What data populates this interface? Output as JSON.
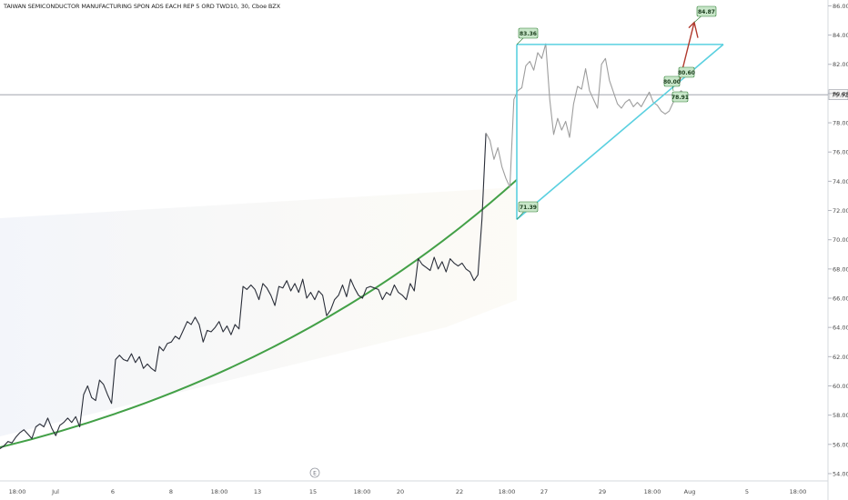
{
  "chart_data": {
    "type": "line",
    "title": "TAIWAN SEMICONDUCTOR MANUFACTURING SPON ADS EACH REP 5 ORD TWD10, 30, Cboe BZX",
    "ylim": [
      53.5,
      86.4
    ],
    "y_ticks": [
      "86.00",
      "84.00",
      "82.00",
      "80.00",
      "78.00",
      "76.00",
      "74.00",
      "72.00",
      "70.00",
      "68.00",
      "66.00",
      "64.00",
      "62.00",
      "60.00",
      "58.00",
      "56.00",
      "54.00"
    ],
    "x_ticks": [
      "18:00",
      "Jul",
      "6",
      "8",
      "18:00",
      "13",
      "15",
      "18:00",
      "20",
      "22",
      "18:00",
      "27",
      "29",
      "18:00",
      "Aug",
      "5",
      "18:00"
    ],
    "last_price": "79.92",
    "earnings_marker": "E",
    "series": [
      {
        "values": [
          55.7,
          55.9,
          56.2,
          56.1,
          56.5,
          56.8,
          57.0,
          56.7,
          56.4,
          57.2,
          57.4,
          57.2,
          57.8,
          57.1,
          56.6,
          57.3,
          57.5,
          57.8,
          57.5,
          57.9,
          57.2,
          59.4,
          60.0,
          59.2,
          59.0,
          60.4,
          60.1,
          59.4,
          58.8,
          61.8,
          62.1,
          61.8,
          61.7,
          62.2,
          61.6,
          62.0,
          61.2,
          61.5,
          61.2,
          61.0,
          62.7,
          62.4,
          62.9,
          63.0,
          63.4,
          63.2,
          63.8,
          64.4,
          64.2,
          64.7,
          64.2,
          63.0,
          63.8,
          63.7,
          64.0,
          64.4,
          63.7,
          64.1,
          63.5,
          64.2,
          63.9,
          66.8,
          66.6,
          66.9,
          66.6,
          65.9,
          67.0,
          66.7,
          66.2,
          65.5,
          66.8,
          66.7,
          67.2,
          66.5,
          67.0,
          66.4,
          67.3,
          66.0,
          66.4,
          65.9,
          66.5,
          66.2,
          64.8,
          65.2,
          65.9,
          66.2,
          66.9,
          66.1,
          67.3,
          66.7,
          66.2,
          66.0,
          66.7,
          66.8,
          66.7,
          66.6,
          65.9,
          66.4,
          66.2,
          66.9,
          66.4,
          66.2,
          65.9,
          67.0,
          66.5,
          68.7,
          68.3,
          68.1,
          67.9,
          68.8,
          68.0,
          68.5,
          67.8,
          68.7,
          68.4,
          68.2,
          68.4,
          68.0,
          67.8,
          67.2,
          67.6,
          71.4,
          77.3,
          76.8,
          75.5,
          76.3,
          75.0,
          74.2,
          73.6,
          79.6,
          80.2,
          80.4,
          81.9,
          82.2,
          81.6,
          82.8,
          82.4,
          83.4,
          79.6,
          77.2,
          78.3,
          77.5,
          78.1,
          77.0,
          79.3,
          80.5,
          80.3,
          81.7,
          80.2,
          79.6,
          79.0,
          82.0,
          82.4,
          80.9,
          80.1,
          79.3,
          79.0,
          79.4,
          79.6,
          79.1,
          79.4,
          79.1,
          79.6,
          80.1,
          79.4,
          79.2,
          78.8,
          78.6,
          78.8,
          79.4,
          79.9,
          80.2,
          79.9
        ]
      }
    ],
    "annotations": {
      "apex_label": "83.36",
      "base_label": "71.39",
      "target_label": "84.87",
      "label_80_00": "80.00",
      "label_80_60": "80.60",
      "label_78_91": "78.91"
    },
    "colors": {
      "price_line": "#2a2e39",
      "price_line_recent": "#9e9e9e",
      "curve": "#43a047",
      "triangle": "#5ad0e0",
      "target_arrow": "#b03a2e",
      "label_bg": "#c8e6c9",
      "label_border": "#2e7d32"
    }
  }
}
